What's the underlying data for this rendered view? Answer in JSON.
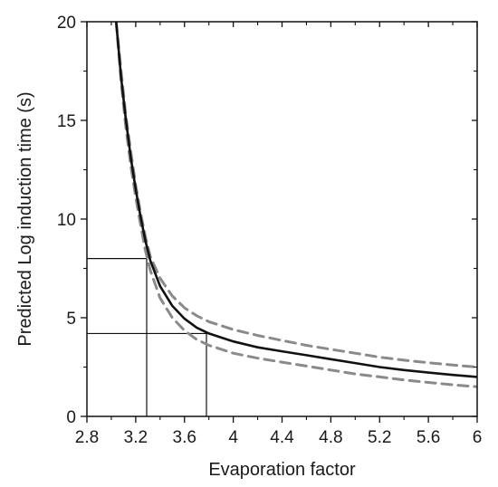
{
  "chart_data": {
    "type": "line",
    "title": "",
    "xlabel": "Evaporation factor",
    "ylabel": "Predicted Log induction time (s)",
    "xlim": [
      2.8,
      6.0
    ],
    "ylim": [
      0,
      20
    ],
    "x_ticks": [
      2.8,
      3.2,
      3.6,
      4.0,
      4.4,
      4.8,
      5.2,
      5.6,
      6.0
    ],
    "x_tick_labels": [
      "2.8",
      "3.2",
      "3.6",
      "4",
      "4.4",
      "4.8",
      "5.2",
      "5.6",
      "6"
    ],
    "y_ticks": [
      0,
      5,
      10,
      15,
      20
    ],
    "y_tick_labels": [
      "0",
      "5",
      "10",
      "15",
      "20"
    ],
    "grid": false,
    "legend": "none",
    "series": [
      {
        "role": "prediction",
        "style": "solid",
        "color": "#111111",
        "x": [
          3.04,
          3.08,
          3.12,
          3.16,
          3.2,
          3.24,
          3.28,
          3.32,
          3.4,
          3.5,
          3.6,
          3.7,
          3.8,
          4.0,
          4.2,
          4.4,
          4.6,
          4.8,
          5.0,
          5.2,
          5.4,
          5.6,
          5.8,
          6.0
        ],
        "y": [
          20,
          17.2,
          15.0,
          13.1,
          11.5,
          10.1,
          8.9,
          7.9,
          6.6,
          5.6,
          4.95,
          4.5,
          4.2,
          3.8,
          3.5,
          3.3,
          3.1,
          2.9,
          2.7,
          2.5,
          2.35,
          2.22,
          2.1,
          2.0
        ]
      },
      {
        "role": "upper-confidence-band",
        "style": "dashed",
        "color": "#8a8a8a",
        "x": [
          3.04,
          3.08,
          3.12,
          3.16,
          3.2,
          3.24,
          3.28,
          3.32,
          3.4,
          3.5,
          3.6,
          3.7,
          3.8,
          4.0,
          4.2,
          4.4,
          4.6,
          4.8,
          5.0,
          5.2,
          5.4,
          5.6,
          5.8,
          6.0
        ],
        "y": [
          20,
          17.5,
          15.2,
          13.4,
          11.7,
          10.3,
          9.1,
          8.1,
          7.0,
          6.1,
          5.5,
          5.1,
          4.8,
          4.4,
          4.1,
          3.85,
          3.6,
          3.4,
          3.2,
          3.0,
          2.85,
          2.72,
          2.6,
          2.5
        ]
      },
      {
        "role": "lower-confidence-band",
        "style": "dashed",
        "color": "#8a8a8a",
        "x": [
          3.04,
          3.08,
          3.12,
          3.16,
          3.2,
          3.24,
          3.28,
          3.32,
          3.4,
          3.5,
          3.6,
          3.7,
          3.8,
          4.0,
          4.2,
          4.4,
          4.6,
          4.8,
          5.0,
          5.2,
          5.4,
          5.6,
          5.8,
          6.0
        ],
        "y": [
          20,
          17.0,
          14.6,
          12.7,
          11.1,
          9.7,
          8.4,
          7.4,
          6.0,
          5.0,
          4.35,
          3.9,
          3.6,
          3.2,
          2.95,
          2.75,
          2.55,
          2.35,
          2.15,
          2.0,
          1.85,
          1.72,
          1.6,
          1.5
        ]
      }
    ],
    "reference_lines": [
      {
        "x": 3.29,
        "y": 8.0
      },
      {
        "x": 3.78,
        "y": 4.2
      }
    ]
  }
}
